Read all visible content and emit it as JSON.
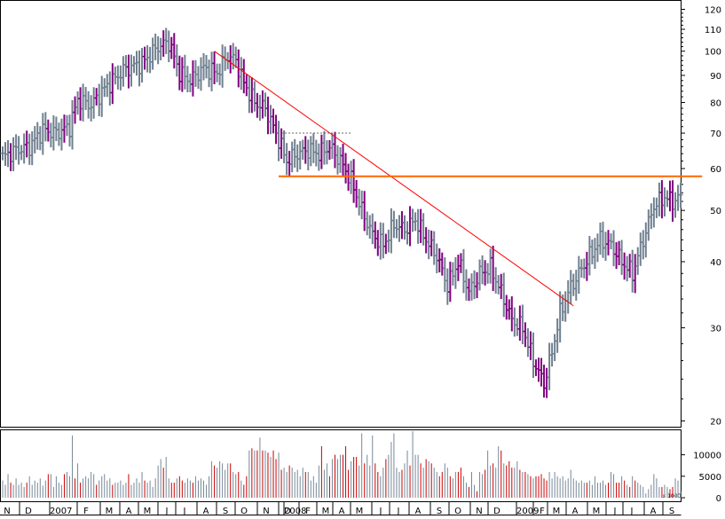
{
  "chart_data": {
    "type": "ohlc-bar",
    "scale": "log",
    "grid": false,
    "price_axis": {
      "ticks": [
        20,
        30,
        40,
        50,
        60,
        70,
        80,
        90,
        100,
        110,
        120
      ],
      "ylim": [
        19.5,
        124
      ]
    },
    "volume_axis": {
      "ticks": [
        0,
        5000,
        10000
      ],
      "ylim": [
        0,
        15500
      ],
      "unit_label": "x 1000"
    },
    "time_axis": {
      "labels": [
        "N",
        "D",
        "2007",
        "F",
        "M",
        "A",
        "M",
        "J",
        "J",
        "A",
        "S",
        "O",
        "N",
        "D",
        "2008",
        "F",
        "M",
        "A",
        "M",
        "J",
        "J",
        "A",
        "S",
        "O",
        "N",
        "D",
        "2009",
        "F",
        "M",
        "A",
        "M",
        "J",
        "J",
        "A",
        "S"
      ]
    },
    "price_anchors": [
      [
        0,
        63
      ],
      [
        5,
        65
      ],
      [
        10,
        66
      ],
      [
        15,
        71
      ],
      [
        20,
        70
      ],
      [
        25,
        72
      ],
      [
        28,
        81
      ],
      [
        33,
        79
      ],
      [
        38,
        85
      ],
      [
        45,
        92
      ],
      [
        52,
        95
      ],
      [
        58,
        102
      ],
      [
        62,
        104
      ],
      [
        66,
        91
      ],
      [
        70,
        88
      ],
      [
        75,
        93
      ],
      [
        80,
        91
      ],
      [
        84,
        98
      ],
      [
        87,
        96
      ],
      [
        90,
        87
      ],
      [
        94,
        80
      ],
      [
        98,
        78
      ],
      [
        103,
        68
      ],
      [
        106,
        62
      ],
      [
        110,
        64
      ],
      [
        114,
        65
      ],
      [
        118,
        64
      ],
      [
        122,
        66
      ],
      [
        126,
        62
      ],
      [
        130,
        57
      ],
      [
        134,
        50
      ],
      [
        138,
        45
      ],
      [
        142,
        43
      ],
      [
        146,
        47
      ],
      [
        150,
        46
      ],
      [
        154,
        48
      ],
      [
        158,
        44
      ],
      [
        162,
        41
      ],
      [
        166,
        36
      ],
      [
        170,
        40
      ],
      [
        174,
        35
      ],
      [
        178,
        38
      ],
      [
        182,
        39
      ],
      [
        186,
        35
      ],
      [
        190,
        31
      ],
      [
        194,
        30
      ],
      [
        198,
        26
      ],
      [
        202,
        23.5
      ],
      [
        205,
        27
      ],
      [
        208,
        32
      ],
      [
        211,
        35
      ],
      [
        215,
        38
      ],
      [
        219,
        41
      ],
      [
        223,
        44
      ],
      [
        227,
        43
      ],
      [
        231,
        40
      ],
      [
        235,
        38
      ],
      [
        239,
        44
      ],
      [
        243,
        51
      ],
      [
        247,
        53
      ],
      [
        250,
        52
      ],
      [
        253,
        53
      ]
    ],
    "down_weeks": [
      3,
      9,
      17,
      23,
      27,
      29,
      35,
      41,
      47,
      53,
      60,
      63,
      64,
      66,
      67,
      71,
      79,
      85,
      88,
      90,
      91,
      93,
      95,
      97,
      99,
      101,
      102,
      104,
      107,
      113,
      119,
      122,
      124,
      127,
      128,
      129,
      131,
      132,
      135,
      139,
      140,
      143,
      149,
      152,
      156,
      158,
      160,
      163,
      164,
      167,
      170,
      171,
      174,
      177,
      180,
      183,
      186,
      188,
      189,
      190,
      193,
      195,
      197,
      199,
      200,
      201,
      202,
      203,
      218,
      226,
      229,
      230,
      232,
      234,
      236,
      246,
      249,
      250
    ],
    "volume_values": [
      4000,
      3000,
      5500,
      3500,
      3000,
      4500,
      3000,
      3500,
      2500,
      3500,
      5000,
      3000,
      4000,
      3500,
      4500,
      2800,
      4000,
      5500,
      5500,
      2500,
      5000,
      3500,
      3000,
      5500,
      6000,
      5000,
      14500,
      4500,
      8000,
      3500,
      4500,
      5000,
      4500,
      6000,
      5500,
      3000,
      4000,
      5000,
      5500,
      4000,
      4500,
      3000,
      3500,
      3500,
      4000,
      3000,
      3500,
      5500,
      3000,
      3500,
      4500,
      3500,
      6000,
      4000,
      3500,
      4000,
      2500,
      4500,
      7500,
      9000,
      7000,
      9500,
      4500,
      3500,
      3500,
      4500,
      5000,
      4000,
      3500,
      4500,
      4000,
      3500,
      5000,
      4000,
      4500,
      4000,
      3000,
      5000,
      8500,
      7500,
      7000,
      8500,
      8000,
      6500,
      8000,
      8000,
      6000,
      5500,
      6000,
      4000,
      3000,
      5000,
      11000,
      11500,
      11000,
      11000,
      14000,
      11000,
      11000,
      10500,
      9500,
      11000,
      9000,
      10500,
      6500,
      7000,
      6000,
      7500,
      7000,
      6000,
      6500,
      5000,
      7000,
      6000,
      6000,
      4000,
      5000,
      3500,
      7500,
      12000,
      6500,
      8000,
      5000,
      9000,
      10000,
      9000,
      10000,
      10000,
      12000,
      6500,
      8500,
      9500,
      9500,
      7500,
      15000,
      8000,
      10000,
      7500,
      14500,
      8000,
      6000,
      5000,
      7000,
      9000,
      10000,
      13000,
      15000,
      7000,
      6000,
      6500,
      8000,
      11000,
      7500,
      15500,
      10000,
      10000,
      8000,
      7000,
      9000,
      8500,
      8000,
      7000,
      6000,
      5000,
      6000,
      8000,
      7000,
      5000,
      4500,
      6000,
      6000,
      7000,
      5000,
      3500,
      2500,
      6000,
      3000,
      1500,
      6000,
      5500,
      6500,
      11000,
      7500,
      8000,
      7000,
      12000,
      11000,
      8000,
      7500,
      8500,
      7000,
      7000,
      8500,
      6500,
      6000,
      6000,
      5500,
      5000,
      4500,
      5000,
      5000,
      5500,
      4500,
      4000,
      6000,
      4500,
      6000,
      5000,
      4500,
      5000,
      4000,
      4500,
      6500,
      4500,
      4000,
      3500,
      4000,
      3500,
      3500,
      4000,
      3000,
      5000,
      3500,
      3500,
      4000,
      3000,
      3500,
      6000,
      5500,
      3500,
      3500,
      5000,
      4000,
      3000,
      2500,
      5000,
      4000,
      3500,
      3000,
      2500,
      1000,
      2000,
      3000,
      5500,
      4500,
      2500,
      2500,
      3000,
      2500,
      2000,
      2500,
      4500,
      4000,
      1500
    ],
    "trendlines": [
      {
        "kind": "resistance",
        "color": "#ff0000",
        "from": [
          79,
          100
        ],
        "to": [
          213,
          33
        ]
      },
      {
        "kind": "support",
        "color": "#ff6600",
        "from": [
          103,
          58
        ],
        "to": [
          261,
          58
        ]
      },
      {
        "kind": "range-top",
        "color": "#666666",
        "from": [
          104,
          70
        ],
        "to": [
          130,
          70
        ]
      }
    ]
  }
}
